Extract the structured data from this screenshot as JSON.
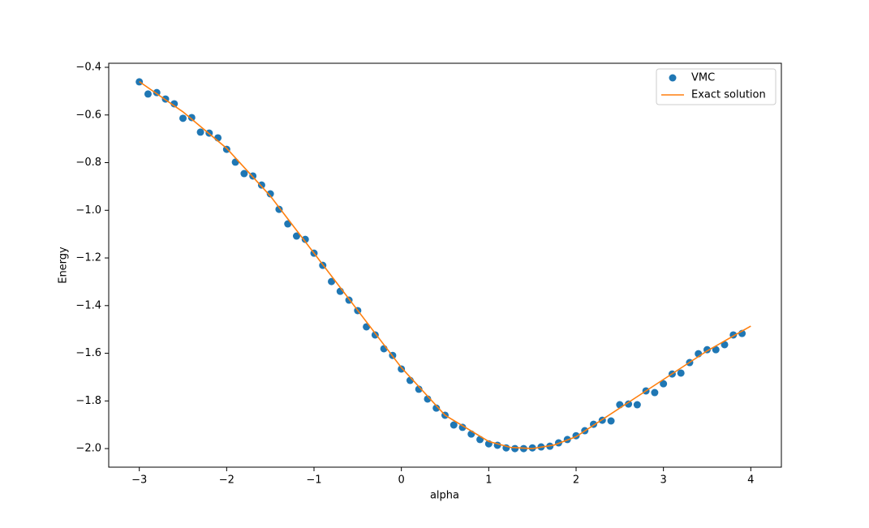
{
  "chart_data": {
    "type": "line",
    "xlabel": "alpha",
    "ylabel": "Energy",
    "xlim": [
      -3.35,
      4.35
    ],
    "ylim": [
      -2.078,
      -0.383
    ],
    "xticks": [
      {
        "value": -3,
        "label": "−3"
      },
      {
        "value": -2,
        "label": "−2"
      },
      {
        "value": -1,
        "label": "−1"
      },
      0,
      1,
      2,
      3,
      4
    ],
    "yticks": [
      {
        "value": -0.4,
        "label": "−0.4"
      },
      {
        "value": -0.6,
        "label": "−0.6"
      },
      {
        "value": -0.8,
        "label": "−0.8"
      },
      {
        "value": -1.0,
        "label": "−1.0"
      },
      {
        "value": -1.2,
        "label": "−1.2"
      },
      {
        "value": -1.4,
        "label": "−1.4"
      },
      {
        "value": -1.6,
        "label": "−1.6"
      },
      {
        "value": -1.8,
        "label": "−1.8"
      },
      {
        "value": -2.0,
        "label": "−2.0"
      }
    ],
    "grid": false,
    "legend": "upper right",
    "series": [
      {
        "name": "VMC",
        "color": "#1f77b4",
        "mode": "markers",
        "x": [
          -3.0,
          -2.9,
          -2.8,
          -2.7,
          -2.6,
          -2.5,
          -2.4,
          -2.3,
          -2.2,
          -2.1,
          -2.0,
          -1.9,
          -1.8,
          -1.7,
          -1.6,
          -1.5,
          -1.4,
          -1.3,
          -1.2,
          -1.1,
          -1.0,
          -0.9,
          -0.8,
          -0.7,
          -0.6,
          -0.5,
          -0.4,
          -0.3,
          -0.2,
          -0.1,
          0.0,
          0.1,
          0.2,
          0.3,
          0.4,
          0.5,
          0.6,
          0.7,
          0.8,
          0.9,
          1.0,
          1.1,
          1.2,
          1.3,
          1.4,
          1.5,
          1.6,
          1.7,
          1.8,
          1.9,
          2.0,
          2.1,
          2.2,
          2.3,
          2.4,
          2.5,
          2.6,
          2.7,
          2.8,
          2.9,
          3.0,
          3.1,
          3.2,
          3.3,
          3.4,
          3.5,
          3.6,
          3.7,
          3.8,
          3.9
        ],
        "values": [
          -0.461,
          -0.512,
          -0.506,
          -0.533,
          -0.553,
          -0.614,
          -0.611,
          -0.672,
          -0.676,
          -0.696,
          -0.744,
          -0.798,
          -0.846,
          -0.856,
          -0.894,
          -0.931,
          -0.996,
          -1.057,
          -1.108,
          -1.122,
          -1.18,
          -1.231,
          -1.299,
          -1.34,
          -1.377,
          -1.421,
          -1.489,
          -1.523,
          -1.581,
          -1.609,
          -1.666,
          -1.714,
          -1.751,
          -1.792,
          -1.83,
          -1.86,
          -1.901,
          -1.911,
          -1.939,
          -1.962,
          -1.98,
          -1.986,
          -1.997,
          -2.0,
          -2.0,
          -1.997,
          -1.993,
          -1.99,
          -1.976,
          -1.962,
          -1.946,
          -1.925,
          -1.898,
          -1.881,
          -1.884,
          -1.816,
          -1.813,
          -1.816,
          -1.758,
          -1.765,
          -1.728,
          -1.687,
          -1.683,
          -1.639,
          -1.602,
          -1.585,
          -1.585,
          -1.564,
          -1.523,
          -1.517
        ]
      },
      {
        "name": "Exact solution",
        "color": "#ff7f0e",
        "mode": "line",
        "x": [
          -3.0,
          -2.5,
          -2.0,
          -1.5,
          -1.0,
          -0.5,
          0.0,
          0.5,
          1.0,
          1.25,
          1.5,
          1.75,
          2.0,
          2.5,
          3.0,
          3.5,
          4.0
        ],
        "values": [
          -0.46,
          -0.587,
          -0.74,
          -0.94,
          -1.18,
          -1.42,
          -1.66,
          -1.86,
          -1.97,
          -1.995,
          -2.0,
          -1.985,
          -1.95,
          -1.83,
          -1.71,
          -1.59,
          -1.486
        ]
      }
    ]
  }
}
